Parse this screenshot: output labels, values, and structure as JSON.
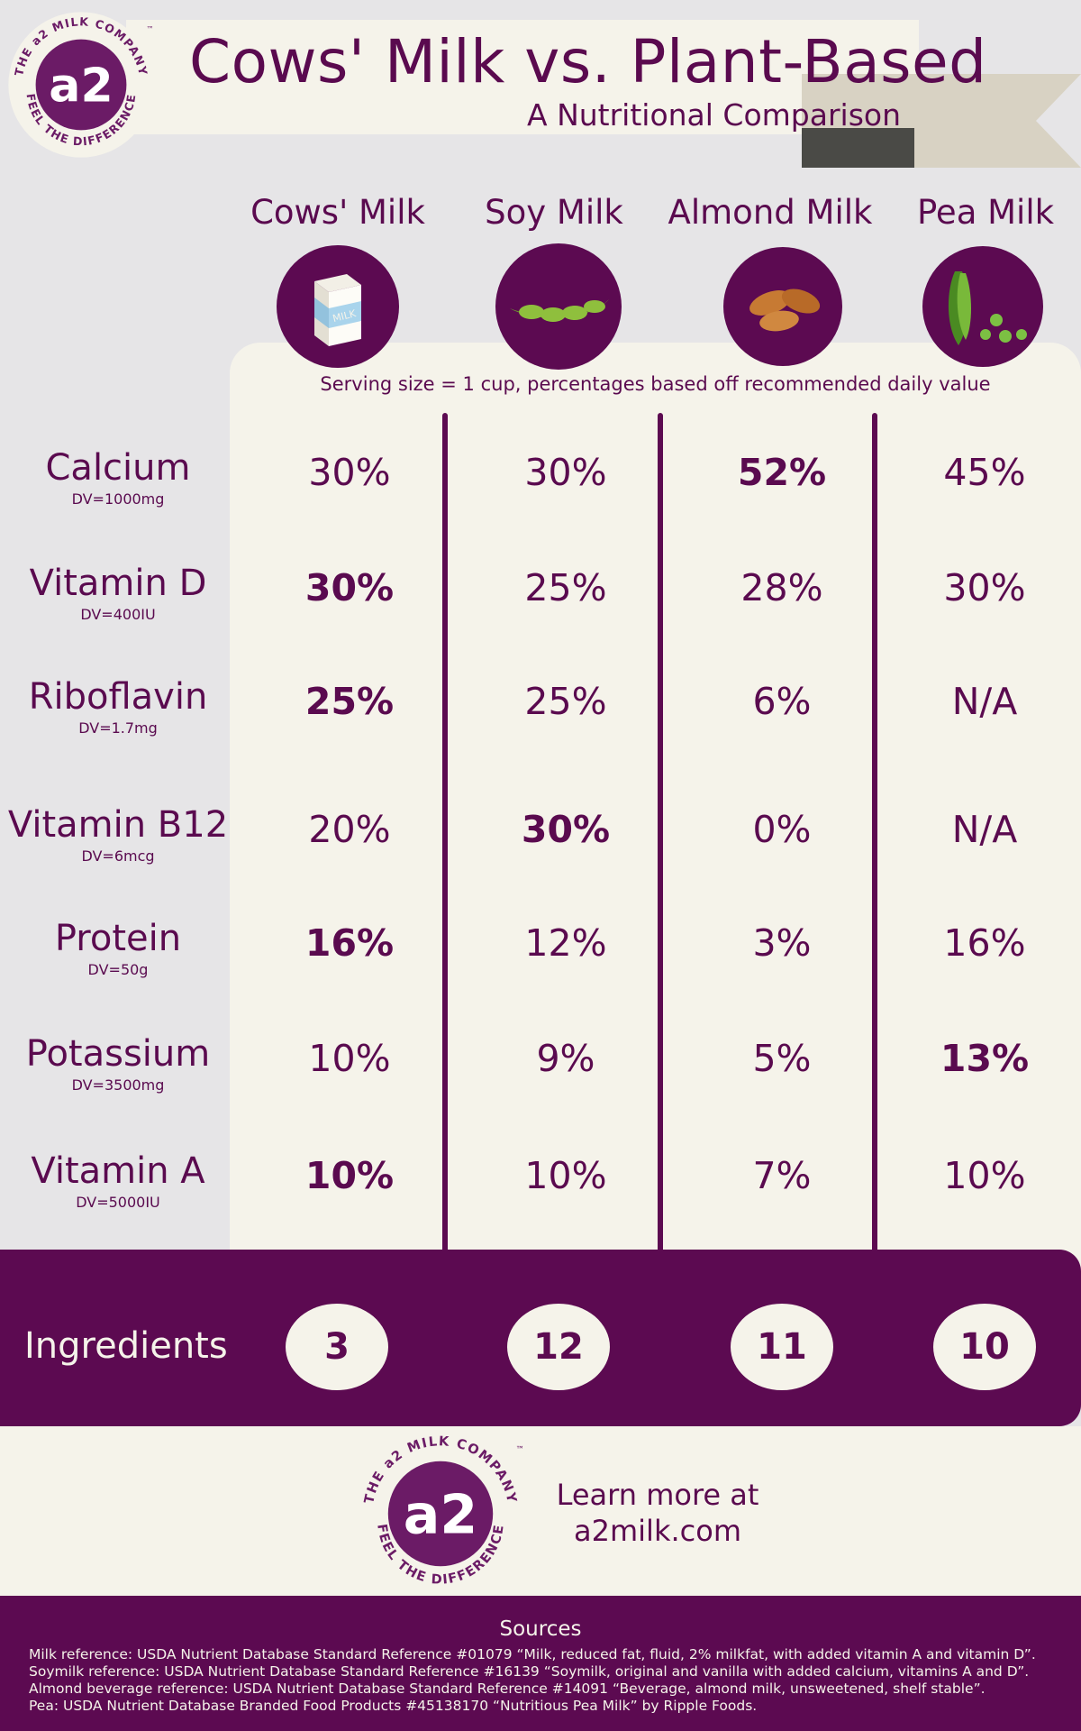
{
  "header": {
    "title": "Cows' Milk vs. Plant-Based",
    "subtitle": "A Nutritional Comparison"
  },
  "logo": {
    "mark": "a2",
    "ring_top": "THE a2 MILK COMPANY",
    "ring_bottom": "FEEL THE DIFFERENCE",
    "tm": "™"
  },
  "columns": [
    {
      "name": "Cows' Milk",
      "icon": "milk-carton-icon"
    },
    {
      "name": "Soy Milk",
      "icon": "soybean-pod-icon"
    },
    {
      "name": "Almond Milk",
      "icon": "almonds-icon"
    },
    {
      "name": "Pea Milk",
      "icon": "pea-pod-icon"
    }
  ],
  "serving_note": "Serving size = 1 cup,  percentages based off recommended daily value",
  "rows": [
    {
      "nutrient": "Calcium",
      "dv": "DV=1000mg",
      "values": [
        "30%",
        "30%",
        "52%",
        "45%"
      ],
      "bold": [
        false,
        false,
        true,
        false
      ]
    },
    {
      "nutrient": "Vitamin D",
      "dv": "DV=400IU",
      "values": [
        "30%",
        "25%",
        "28%",
        "30%"
      ],
      "bold": [
        true,
        false,
        false,
        false
      ]
    },
    {
      "nutrient": "Riboflavin",
      "dv": "DV=1.7mg",
      "values": [
        "25%",
        "25%",
        "6%",
        "N/A"
      ],
      "bold": [
        true,
        false,
        false,
        false
      ]
    },
    {
      "nutrient": "Vitamin B12",
      "dv": "DV=6mcg",
      "values": [
        "20%",
        "30%",
        "0%",
        "N/A"
      ],
      "bold": [
        false,
        true,
        false,
        false
      ]
    },
    {
      "nutrient": "Protein",
      "dv": "DV=50g",
      "values": [
        "16%",
        "12%",
        "3%",
        "16%"
      ],
      "bold": [
        true,
        false,
        false,
        false
      ]
    },
    {
      "nutrient": "Potassium",
      "dv": "DV=3500mg",
      "values": [
        "10%",
        "9%",
        "5%",
        "13%"
      ],
      "bold": [
        false,
        false,
        false,
        true
      ]
    },
    {
      "nutrient": "Vitamin A",
      "dv": "DV=5000IU",
      "values": [
        "10%",
        "10%",
        "7%",
        "10%"
      ],
      "bold": [
        true,
        false,
        false,
        false
      ]
    }
  ],
  "ingredients": {
    "label": "Ingredients",
    "counts": [
      "3",
      "12",
      "11",
      "10"
    ]
  },
  "footer": {
    "learn_more_line1": "Learn more at",
    "learn_more_line2": "a2milk.com"
  },
  "sources": {
    "title": "Sources",
    "lines": [
      "Milk reference: USDA Nutrient Database Standard Reference #01079 “Milk, reduced fat, fluid, 2% milkfat, with added vitamin A and vitamin D”.",
      "Soymilk reference: USDA Nutrient Database Standard Reference #16139 “Soymilk, original and vanilla with added calcium, vitamins A and D”.",
      "Almond beverage reference: USDA Nutrient Database Standard Reference #14091 “Beverage, almond milk, unsweetened, shelf stable”.",
      "Pea: USDA Nutrient Database Branded Food Products #45138170 “Nutritious Pea Milk” by Ripple Foods."
    ]
  },
  "colors": {
    "brand_purple": "#5c0a51",
    "cream": "#f5f3ea",
    "background_gray": "#e6e5e7"
  }
}
